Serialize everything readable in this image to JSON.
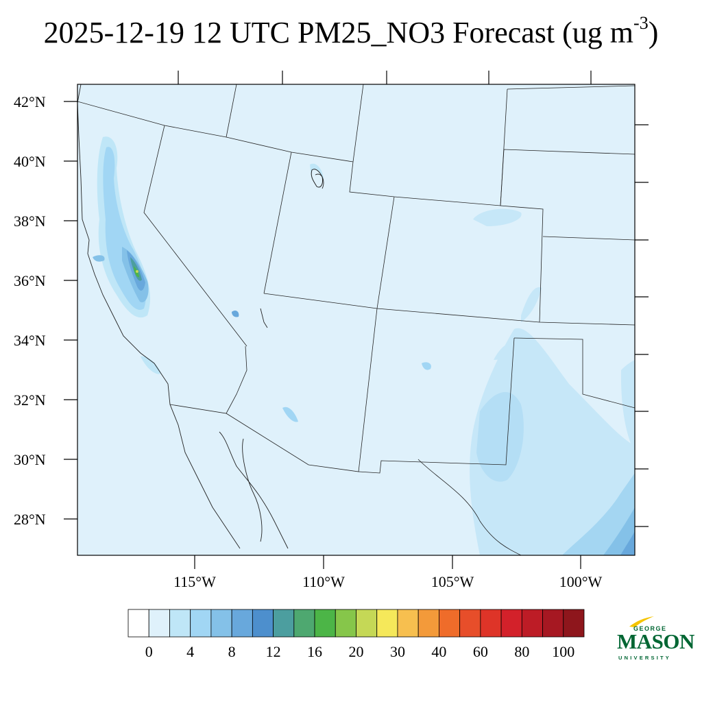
{
  "title": {
    "main": "2025-12-19 12 UTC PM25_NO3 Forecast (ug m",
    "superscript": "-3",
    "close": ")"
  },
  "map": {
    "region": "Southwestern United States",
    "lat_labels": [
      "42°N",
      "40°N",
      "38°N",
      "36°N",
      "34°N",
      "32°N",
      "30°N",
      "28°N"
    ],
    "lon_labels": [
      "115°W",
      "110°W",
      "105°W",
      "100°W"
    ],
    "background_color": "#dff1fb",
    "boundary_color": "#222222"
  },
  "colorbar": {
    "colors": [
      "#ffffff",
      "#dff1fb",
      "#bfe6f7",
      "#a1d6f4",
      "#84c1e8",
      "#68a8dc",
      "#4d8fcd",
      "#4c9e9f",
      "#4ea870",
      "#4cb547",
      "#86c64a",
      "#c5d856",
      "#f5e85a",
      "#f7bf4f",
      "#f39a3a",
      "#ef6c2a",
      "#e74e2a",
      "#de3428",
      "#d3212a",
      "#bd1c26",
      "#a61822",
      "#8e161c"
    ],
    "labels": [
      "0",
      "4",
      "8",
      "12",
      "16",
      "20",
      "30",
      "40",
      "60",
      "80",
      "100"
    ]
  },
  "logo": {
    "line1": "GEORGE",
    "line2": "MASON",
    "line3": "UNIVERSITY",
    "color": "#006633",
    "accent": "#f5c400"
  }
}
